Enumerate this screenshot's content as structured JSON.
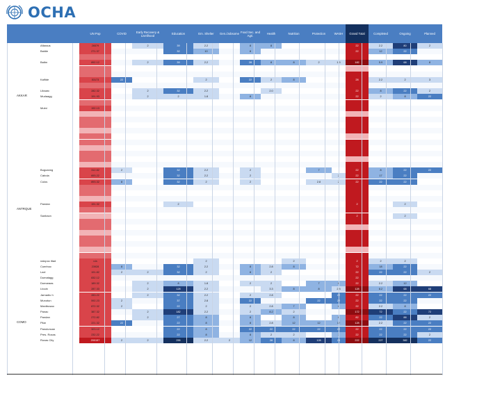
{
  "header": {
    "logo_text": "OCHA",
    "columns": [
      "UN Pop",
      "COVID",
      "Early Recovery & Livelihood",
      "Education",
      "Em. Shelter",
      "Gen./Jobsome",
      "Food Sec. and Agri.",
      "Health",
      "Nutrition",
      "Protection",
      "WASH",
      "Grand Total",
      "Completed",
      "Ongoing",
      "Planned"
    ]
  },
  "palette": {
    "red_strong": "#d9444a",
    "red_mid": "#e36b70",
    "red_light": "#f2b3b6",
    "red_dark": "#c0191f",
    "maroon": "#8e0c10",
    "blue_light": "#c9daf1",
    "blue_mid": "#8fb3e2",
    "blue_strong": "#4a7ec2",
    "blue_dark": "#1f3e78",
    "navy": "#14305e"
  },
  "provinces": [
    {
      "label": "AKKAR",
      "row": 9
    },
    {
      "label": "ANTRQUE",
      "row": 29
    },
    {
      "label": "COMO",
      "row": 49
    }
  ],
  "rows": [
    {
      "name": "Aflaraus",
      "vals": [
        "26579",
        "",
        "2",
        "39",
        "2.2",
        "",
        "8",
        "8",
        "",
        "",
        "",
        "22",
        "2.2",
        "80",
        "2"
      ]
    },
    {
      "name": "Baldie",
      "vals": [
        "271.37",
        "",
        "",
        "32",
        "10",
        "",
        "8",
        "",
        "",
        "",
        "",
        "22",
        "12",
        "22",
        ""
      ]
    },
    {
      "name": "",
      "vals": [
        "",
        "",
        "",
        "",
        "",
        "",
        "",
        "",
        "",
        "",
        "",
        "",
        "",
        "",
        ""
      ]
    },
    {
      "name": "Baibn",
      "vals": [
        "892.12",
        "",
        "2",
        "39",
        "2.2",
        "",
        "28",
        "8",
        "8",
        "2",
        "1.5",
        "182",
        "5.9",
        "68",
        "8"
      ]
    },
    {
      "name": "",
      "vals": [
        "",
        "",
        "",
        "",
        "",
        "",
        "",
        "",
        "",
        "",
        "",
        "",
        "",
        "",
        ""
      ]
    },
    {
      "name": "",
      "vals": [
        "",
        "",
        "",
        "",
        "",
        "",
        "",
        "",
        "",
        "",
        "",
        "",
        "",
        "",
        ""
      ]
    },
    {
      "name": "Kalfide",
      "vals": [
        "53173",
        "22",
        "",
        "",
        "2",
        "",
        "22",
        "2",
        "8",
        "",
        "",
        "28",
        "2.2",
        "2",
        "3"
      ]
    },
    {
      "name": "",
      "vals": [
        "",
        "",
        "",
        "",
        "",
        "",
        "",
        "",
        "",
        "",
        "",
        "",
        "",
        "",
        ""
      ]
    },
    {
      "name": "Libaarc",
      "vals": [
        "282.32",
        "",
        "2",
        "32",
        "2.2",
        "",
        "",
        "2.0",
        "",
        "",
        "",
        "22",
        "8",
        "22",
        "2"
      ]
    },
    {
      "name": "Mudaagg",
      "vals": [
        "191.93",
        "",
        "2",
        "2",
        "1.8",
        "",
        "8",
        "",
        "",
        "",
        "",
        "22",
        "2",
        "8",
        "22"
      ]
    },
    {
      "name": "",
      "vals": [
        "",
        "",
        "",
        "",
        "",
        "",
        "",
        "",
        "",
        "",
        "",
        "",
        "",
        "",
        ""
      ]
    },
    {
      "name": "Mutni",
      "vals": [
        "192.13",
        "",
        "",
        "",
        "",
        "",
        "",
        "",
        "",
        "",
        "",
        "",
        "",
        "",
        ""
      ]
    },
    {
      "name": "",
      "vals": [
        "",
        "",
        "",
        "",
        "",
        "",
        "",
        "",
        "",
        "",
        "",
        "",
        "",
        "",
        ""
      ]
    },
    {
      "name": "",
      "vals": [
        "",
        "",
        "",
        "",
        "",
        "",
        "",
        "",
        "",
        "",
        "",
        "",
        "",
        "",
        ""
      ]
    },
    {
      "name": "",
      "vals": [
        "",
        "",
        "",
        "",
        "",
        "",
        "",
        "",
        "",
        "",
        "",
        "",
        "",
        "",
        ""
      ]
    },
    {
      "name": "",
      "vals": [
        "",
        "",
        "",
        "",
        "",
        "",
        "",
        "",
        "",
        "",
        "",
        "",
        "",
        "",
        ""
      ]
    },
    {
      "name": "",
      "vals": [
        "",
        "",
        "",
        "",
        "",
        "",
        "",
        "",
        "",
        "",
        "",
        "",
        "",
        "",
        ""
      ]
    },
    {
      "name": "",
      "vals": [
        "",
        "",
        "",
        "",
        "",
        "",
        "",
        "",
        "",
        "",
        "",
        "",
        "",
        "",
        ""
      ]
    },
    {
      "name": "",
      "vals": [
        "",
        "",
        "",
        "",
        "",
        "",
        "",
        "",
        "",
        "",
        "",
        "",
        "",
        "",
        ""
      ]
    },
    {
      "name": "",
      "vals": [
        "",
        "",
        "",
        "",
        "",
        "",
        "",
        "",
        "",
        "",
        "",
        "",
        "",
        "",
        ""
      ]
    },
    {
      "name": "",
      "vals": [
        "",
        "",
        "",
        "",
        "",
        "",
        "",
        "",
        "",
        "",
        "",
        "",
        "",
        "",
        ""
      ]
    },
    {
      "name": "",
      "vals": [
        "",
        "",
        "",
        "",
        "",
        "",
        "",
        "",
        "",
        "",
        "",
        "",
        "",
        "",
        ""
      ]
    },
    {
      "name": "Bugoanng",
      "vals": [
        "312.82",
        "2",
        "",
        "32",
        "2.2",
        "",
        "2",
        "",
        "",
        "7",
        "",
        "22",
        "8",
        "22",
        "22"
      ]
    },
    {
      "name": "Cabola",
      "vals": [
        "693.22",
        "",
        "",
        "32",
        "2.2",
        "",
        "2",
        "",
        "",
        "",
        "2",
        "22",
        "17",
        "22",
        ""
      ]
    },
    {
      "name": "Culos",
      "vals": [
        "893.32",
        "8",
        "",
        "32",
        "2",
        "",
        "2",
        "",
        "",
        "2.8",
        "2",
        "22",
        "22",
        "22",
        ""
      ]
    },
    {
      "name": "",
      "vals": [
        "",
        "",
        "",
        "",
        "",
        "",
        "",
        "",
        "",
        "",
        "",
        "",
        "",
        "",
        ""
      ]
    },
    {
      "name": "",
      "vals": [
        "",
        "",
        "",
        "",
        "",
        "",
        "",
        "",
        "",
        "",
        "",
        "",
        "",
        "",
        ""
      ]
    },
    {
      "name": "",
      "vals": [
        "",
        "",
        "",
        "",
        "",
        "",
        "",
        "",
        "",
        "",
        "",
        "",
        "",
        "",
        ""
      ]
    },
    {
      "name": "Pandan",
      "vals": [
        "191.32",
        "",
        "",
        "2",
        "",
        "",
        "",
        "",
        "",
        "",
        "",
        "2",
        "",
        "2",
        ""
      ]
    },
    {
      "name": "",
      "vals": [
        "",
        "",
        "",
        "",
        "",
        "",
        "",
        "",
        "",
        "",
        "",
        "",
        "",
        "",
        ""
      ]
    },
    {
      "name": "Sanbacn",
      "vals": [
        "",
        "",
        "",
        "",
        "",
        "",
        "",
        "",
        "",
        "",
        "",
        "2",
        "",
        "2",
        ""
      ]
    },
    {
      "name": "",
      "vals": [
        "",
        "",
        "",
        "",
        "",
        "",
        "",
        "",
        "",
        "",
        "",
        "",
        "",
        "",
        ""
      ]
    },
    {
      "name": "",
      "vals": [
        "",
        "",
        "",
        "",
        "",
        "",
        "",
        "",
        "",
        "",
        "",
        "",
        "",
        "",
        ""
      ]
    },
    {
      "name": "",
      "vals": [
        "",
        "",
        "",
        "",
        "",
        "",
        "",
        "",
        "",
        "",
        "",
        "",
        "",
        "",
        ""
      ]
    },
    {
      "name": "",
      "vals": [
        "",
        "",
        "",
        "",
        "",
        "",
        "",
        "",
        "",
        "",
        "",
        "",
        "",
        "",
        ""
      ]
    },
    {
      "name": "",
      "vals": [
        "",
        "",
        "",
        "",
        "",
        "",
        "",
        "",
        "",
        "",
        "",
        "",
        "",
        "",
        ""
      ]
    },
    {
      "name": "",
      "vals": [
        "",
        "",
        "",
        "",
        "",
        "",
        "",
        "",
        "",
        "",
        "",
        "",
        "",
        "",
        ""
      ]
    },
    {
      "name": "",
      "vals": [
        "",
        "",
        "",
        "",
        "",
        "",
        "",
        "",
        "",
        "",
        "",
        "",
        "",
        "",
        ""
      ]
    },
    {
      "name": "nalcpoc iltad",
      "vals": [
        "n/a",
        "",
        "",
        "",
        "2",
        "",
        "",
        "",
        "2",
        "",
        "",
        "2",
        "2",
        "2",
        ""
      ]
    },
    {
      "name": "Cuerlnoc",
      "vals": [
        "23928",
        "8",
        "",
        "32",
        "2.2",
        "",
        "8",
        "2.8",
        "8",
        "",
        "",
        "72",
        "18",
        "22",
        ""
      ]
    },
    {
      "name": "Laxl",
      "vals": [
        "191.82",
        "2",
        "2",
        "32",
        "2",
        "",
        "8",
        "2",
        "",
        "",
        "",
        "22",
        "22",
        "22",
        "2"
      ]
    },
    {
      "name": "Dumatagg",
      "vals": [
        "832.12",
        "",
        "",
        "",
        "",
        "",
        "",
        "",
        "",
        "",
        "",
        "22",
        "",
        "",
        ""
      ]
    },
    {
      "name": "Dumaraas",
      "vals": [
        "189.32",
        "",
        "2",
        "8",
        "1.8",
        "",
        "2",
        "2",
        "",
        "7",
        "8",
        "22",
        "2.2",
        "12",
        ""
      ]
    },
    {
      "name": "Ltouin",
      "vals": [
        "287.33",
        "",
        "2",
        "128",
        "2.2",
        "",
        "",
        "3.3",
        "8",
        "8",
        "2.8",
        "128",
        "8.2",
        "68",
        "68"
      ]
    },
    {
      "name": "Jarnadiu h",
      "vals": [
        "283.22",
        "",
        "2",
        "32",
        "2.2",
        "",
        "2",
        "2.8",
        "",
        "",
        "22",
        "22",
        "22",
        "22",
        "22"
      ]
    },
    {
      "name": "Munotun",
      "vals": [
        "592.23",
        "2",
        "",
        "37",
        "2.8",
        "",
        "22",
        "",
        "",
        "22",
        "22",
        "22",
        "22",
        "22",
        ""
      ]
    },
    {
      "name": "Mantbusao",
      "vals": [
        "872.32",
        "2",
        "",
        "22",
        "2",
        "",
        "2",
        "2.8",
        "7",
        "",
        "8",
        "22",
        "2.2",
        "8",
        ""
      ]
    },
    {
      "name": "Panac",
      "vals": [
        "387.32",
        "",
        "2",
        "182",
        "2.2",
        "",
        "2",
        "8.2",
        "2",
        "",
        "",
        "172",
        "72",
        "22",
        "72"
      ]
    },
    {
      "name": "Pandan",
      "vals": [
        "272.82",
        "",
        "2",
        "27",
        "8",
        "",
        "8",
        "",
        "8",
        "",
        "8",
        "82",
        "22",
        "88",
        "2"
      ]
    },
    {
      "name": "Pilar",
      "vals": [
        "221.32",
        "22",
        "",
        "22",
        "8",
        "",
        "8",
        "2.8",
        "12",
        "12",
        "12",
        "128",
        "2.2",
        "22",
        "22"
      ]
    },
    {
      "name": "Panuluncan",
      "vals": [
        "323.12",
        "",
        "",
        "22",
        "8",
        "",
        "22",
        "22",
        "22",
        "22",
        "22",
        "22",
        "22",
        "22",
        "22"
      ]
    },
    {
      "name": "Pres. Roxas",
      "vals": [
        "232.22",
        "",
        "",
        "22",
        "8",
        "",
        "8",
        "2",
        "2",
        "",
        "7",
        "22",
        "22",
        "22",
        "2"
      ]
    },
    {
      "name": "Roxas City",
      "vals": [
        "200157",
        "2",
        "2",
        "255",
        "2.2",
        "2",
        "12",
        "28",
        "8",
        "128",
        "28",
        "222",
        "227",
        "382",
        "22"
      ]
    }
  ]
}
